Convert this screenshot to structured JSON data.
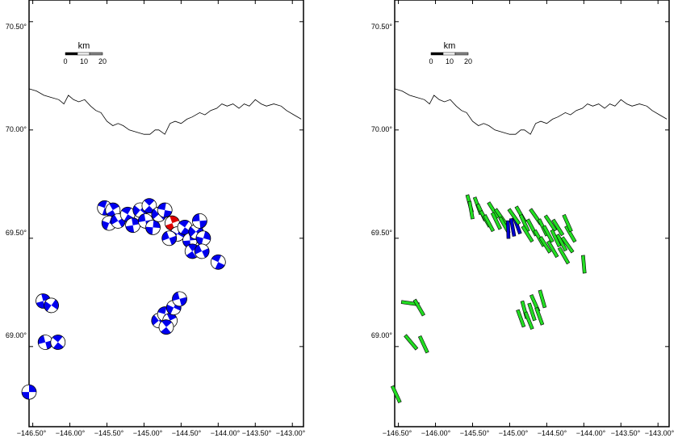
{
  "panels": [
    {
      "id": "left",
      "ytick_labels": [
        "70.50°",
        "70.00°",
        "69.50°",
        "69.00°"
      ],
      "xtick_labels": [
        "−146.50°",
        "−146.00°",
        "−145.50°",
        "−145.00°",
        "−144.50°",
        "−144.00°",
        "−143.50°",
        "−143.00°"
      ],
      "scale_bar": {
        "unit": "km",
        "labels": [
          "0",
          "10",
          "20"
        ]
      },
      "symbol_type": "focal-mechanism"
    },
    {
      "id": "right",
      "ytick_labels": [
        "70.50°",
        "70.00°",
        "69.50°",
        "69.00°"
      ],
      "xtick_labels": [
        "−146.50°",
        "−146.00°",
        "−145.50°",
        "−145.00°",
        "−144.50°",
        "−144.00°",
        "−143.50°",
        "−143.00°"
      ],
      "scale_bar": {
        "unit": "km",
        "labels": [
          "0",
          "10",
          "20"
        ]
      },
      "symbol_type": "stress-axis-bar"
    }
  ],
  "map_extent": {
    "lon": [
      -146.55,
      -142.85
    ],
    "lat": [
      68.63,
      70.6
    ]
  },
  "lon_ticks": [
    -146.5,
    -146.0,
    -145.5,
    -145.0,
    -144.5,
    -144.0,
    -143.5,
    -143.0
  ],
  "lat_ticks": [
    70.5,
    70.0,
    69.5,
    69.0
  ],
  "colors": {
    "mechanism_fill": "#0000ee",
    "highlight_mechanism_fill": "#dd0000",
    "bar_fill": "#22dd22",
    "highlight_bar_fill": "#0000cc",
    "coastline": "#000000"
  },
  "coastline": [
    [
      -146.55,
      70.19
    ],
    [
      -146.45,
      70.18
    ],
    [
      -146.35,
      70.16
    ],
    [
      -146.25,
      70.15
    ],
    [
      -146.15,
      70.14
    ],
    [
      -146.08,
      70.12
    ],
    [
      -146.02,
      70.16
    ],
    [
      -145.95,
      70.14
    ],
    [
      -145.88,
      70.13
    ],
    [
      -145.8,
      70.14
    ],
    [
      -145.72,
      70.11
    ],
    [
      -145.65,
      70.09
    ],
    [
      -145.58,
      70.08
    ],
    [
      -145.5,
      70.04
    ],
    [
      -145.42,
      70.02
    ],
    [
      -145.35,
      70.03
    ],
    [
      -145.28,
      70.02
    ],
    [
      -145.2,
      70.0
    ],
    [
      -145.1,
      69.99
    ],
    [
      -145.0,
      69.98
    ],
    [
      -144.92,
      69.98
    ],
    [
      -144.85,
      70.0
    ],
    [
      -144.8,
      70.0
    ],
    [
      -144.72,
      69.98
    ],
    [
      -144.65,
      70.03
    ],
    [
      -144.58,
      70.04
    ],
    [
      -144.5,
      70.03
    ],
    [
      -144.42,
      70.05
    ],
    [
      -144.35,
      70.06
    ],
    [
      -144.25,
      70.08
    ],
    [
      -144.18,
      70.07
    ],
    [
      -144.1,
      70.09
    ],
    [
      -144.02,
      70.1
    ],
    [
      -143.95,
      70.12
    ],
    [
      -143.88,
      70.11
    ],
    [
      -143.8,
      70.12
    ],
    [
      -143.72,
      70.1
    ],
    [
      -143.65,
      70.12
    ],
    [
      -143.58,
      70.11
    ],
    [
      -143.5,
      70.14
    ],
    [
      -143.42,
      70.12
    ],
    [
      -143.35,
      70.11
    ],
    [
      -143.25,
      70.12
    ],
    [
      -143.15,
      70.11
    ],
    [
      -143.08,
      70.09
    ],
    [
      -142.98,
      70.07
    ],
    [
      -142.88,
      70.05
    ]
  ],
  "focal_mechanisms": [
    {
      "lon": -145.53,
      "lat": 69.64,
      "angle": 20
    },
    {
      "lon": -145.42,
      "lat": 69.63,
      "angle": 60
    },
    {
      "lon": -145.47,
      "lat": 69.57,
      "angle": 110
    },
    {
      "lon": -145.35,
      "lat": 69.58,
      "angle": 150
    },
    {
      "lon": -145.22,
      "lat": 69.61,
      "angle": 30
    },
    {
      "lon": -145.15,
      "lat": 69.56,
      "angle": 80
    },
    {
      "lon": -145.05,
      "lat": 69.63,
      "angle": 130
    },
    {
      "lon": -144.98,
      "lat": 69.58,
      "angle": 170
    },
    {
      "lon": -144.93,
      "lat": 69.65,
      "angle": 45
    },
    {
      "lon": -144.88,
      "lat": 69.55,
      "angle": 95
    },
    {
      "lon": -144.8,
      "lat": 69.61,
      "angle": 140
    },
    {
      "lon": -144.72,
      "lat": 69.63,
      "angle": 10
    },
    {
      "lon": -144.62,
      "lat": 69.57,
      "angle": 70,
      "highlight": true
    },
    {
      "lon": -144.55,
      "lat": 69.52,
      "angle": 120
    },
    {
      "lon": -144.66,
      "lat": 69.5,
      "angle": 160
    },
    {
      "lon": -144.45,
      "lat": 69.55,
      "angle": 35
    },
    {
      "lon": -144.38,
      "lat": 69.49,
      "angle": 85
    },
    {
      "lon": -144.3,
      "lat": 69.53,
      "angle": 135
    },
    {
      "lon": -144.25,
      "lat": 69.58,
      "angle": 175
    },
    {
      "lon": -144.35,
      "lat": 69.44,
      "angle": 55
    },
    {
      "lon": -144.2,
      "lat": 69.5,
      "angle": 105
    },
    {
      "lon": -144.22,
      "lat": 69.44,
      "angle": 155
    },
    {
      "lon": -144.0,
      "lat": 69.39,
      "angle": 25
    },
    {
      "lon": -146.36,
      "lat": 69.21,
      "angle": 75
    },
    {
      "lon": -146.25,
      "lat": 69.19,
      "angle": 125
    },
    {
      "lon": -146.33,
      "lat": 69.02,
      "angle": 165
    },
    {
      "lon": -146.16,
      "lat": 69.02,
      "angle": 40
    },
    {
      "lon": -146.55,
      "lat": 68.79,
      "angle": 90
    },
    {
      "lon": -144.8,
      "lat": 69.12,
      "angle": 140
    },
    {
      "lon": -144.72,
      "lat": 69.15,
      "angle": 15
    },
    {
      "lon": -144.65,
      "lat": 69.12,
      "angle": 65
    },
    {
      "lon": -144.6,
      "lat": 69.18,
      "angle": 115
    },
    {
      "lon": -144.52,
      "lat": 69.22,
      "angle": 165
    },
    {
      "lon": -144.7,
      "lat": 69.09,
      "angle": 50
    }
  ],
  "stress_bars": [
    {
      "lon": -145.54,
      "lat": 69.66,
      "angle": 75
    },
    {
      "lon": -145.52,
      "lat": 69.63,
      "angle": 80
    },
    {
      "lon": -145.43,
      "lat": 69.65,
      "angle": 70
    },
    {
      "lon": -145.38,
      "lat": 69.62,
      "angle": 65
    },
    {
      "lon": -145.33,
      "lat": 69.59,
      "angle": 60
    },
    {
      "lon": -145.28,
      "lat": 69.57,
      "angle": 62
    },
    {
      "lon": -145.22,
      "lat": 69.63,
      "angle": 58
    },
    {
      "lon": -145.18,
      "lat": 69.58,
      "angle": 64
    },
    {
      "lon": -145.12,
      "lat": 69.6,
      "angle": 55
    },
    {
      "lon": -145.07,
      "lat": 69.56,
      "angle": 60
    },
    {
      "lon": -145.02,
      "lat": 69.54,
      "angle": 88,
      "highlight": true
    },
    {
      "lon": -144.96,
      "lat": 69.55,
      "angle": 80,
      "highlight": true
    },
    {
      "lon": -144.9,
      "lat": 69.56,
      "angle": 70,
      "highlight": true
    },
    {
      "lon": -144.94,
      "lat": 69.6,
      "angle": 55
    },
    {
      "lon": -144.85,
      "lat": 69.61,
      "angle": 60
    },
    {
      "lon": -144.8,
      "lat": 69.57,
      "angle": 65
    },
    {
      "lon": -144.76,
      "lat": 69.52,
      "angle": 58
    },
    {
      "lon": -144.7,
      "lat": 69.55,
      "angle": 62
    },
    {
      "lon": -144.65,
      "lat": 69.6,
      "angle": 55
    },
    {
      "lon": -144.6,
      "lat": 69.5,
      "angle": 60
    },
    {
      "lon": -144.55,
      "lat": 69.55,
      "angle": 64
    },
    {
      "lon": -144.52,
      "lat": 69.47,
      "angle": 58
    },
    {
      "lon": -144.48,
      "lat": 69.52,
      "angle": 62
    },
    {
      "lon": -144.45,
      "lat": 69.57,
      "angle": 56
    },
    {
      "lon": -144.42,
      "lat": 69.45,
      "angle": 60
    },
    {
      "lon": -144.38,
      "lat": 69.5,
      "angle": 65
    },
    {
      "lon": -144.35,
      "lat": 69.55,
      "angle": 58
    },
    {
      "lon": -144.3,
      "lat": 69.48,
      "angle": 62
    },
    {
      "lon": -144.27,
      "lat": 69.42,
      "angle": 60
    },
    {
      "lon": -144.22,
      "lat": 69.47,
      "angle": 55
    },
    {
      "lon": -144.18,
      "lat": 69.52,
      "angle": 60
    },
    {
      "lon": -144.22,
      "lat": 69.57,
      "angle": 66
    },
    {
      "lon": -144.0,
      "lat": 69.38,
      "angle": 85
    },
    {
      "lon": -146.34,
      "lat": 69.2,
      "angle": 8
    },
    {
      "lon": -146.22,
      "lat": 69.18,
      "angle": 60
    },
    {
      "lon": -146.33,
      "lat": 69.02,
      "angle": 50
    },
    {
      "lon": -146.16,
      "lat": 69.01,
      "angle": 65
    },
    {
      "lon": -146.53,
      "lat": 68.78,
      "angle": 65
    },
    {
      "lon": -144.85,
      "lat": 69.13,
      "angle": 70
    },
    {
      "lon": -144.8,
      "lat": 69.17,
      "angle": 75
    },
    {
      "lon": -144.74,
      "lat": 69.12,
      "angle": 68
    },
    {
      "lon": -144.7,
      "lat": 69.16,
      "angle": 72
    },
    {
      "lon": -144.66,
      "lat": 69.2,
      "angle": 66
    },
    {
      "lon": -144.6,
      "lat": 69.14,
      "angle": 70
    },
    {
      "lon": -144.56,
      "lat": 69.22,
      "angle": 74
    }
  ]
}
